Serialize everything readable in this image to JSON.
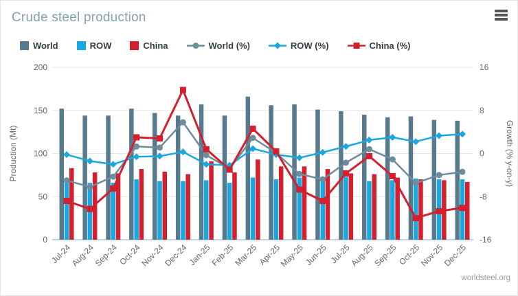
{
  "header": {
    "title": "Crude steel production"
  },
  "watermark": "worldsteel.org",
  "colors": {
    "world_bar": "#587a8e",
    "row_bar": "#19a9e0",
    "china_bar": "#d2202e",
    "world_line": "#6f8c9d",
    "row_line": "#19a9e0",
    "china_line": "#d2202e",
    "grid": "#e6e6e6",
    "baseline": "#a9c7dd",
    "axis_text": "#666666",
    "title_text": "#84a0b1",
    "legend_text": "#333c44"
  },
  "chart_data": {
    "type": "combo-bar-line",
    "title": "Crude steel production",
    "categories": [
      "Jul-24",
      "Aug-24",
      "Sep-24",
      "Oct-24",
      "Nov-24",
      "Dec-24",
      "Jan-25",
      "Feb-25",
      "Mar-25",
      "Apr-25",
      "May-25",
      "Jun-25",
      "Jul-25",
      "Aug-25",
      "Sep-25",
      "Oct-25",
      "Nov-25",
      "Dec-25"
    ],
    "series": [
      {
        "name": "World",
        "type": "bar",
        "axis": "left",
        "color": "#587a8e",
        "marker": "none",
        "values": [
          152,
          144,
          144,
          152,
          147,
          144,
          157,
          144,
          166,
          156,
          157,
          151,
          149,
          145,
          142,
          143,
          139,
          138
        ]
      },
      {
        "name": "ROW",
        "type": "bar",
        "axis": "left",
        "color": "#19a9e0",
        "marker": "none",
        "values": [
          68,
          66,
          66,
          70,
          68,
          68,
          69,
          66,
          72,
          70,
          72,
          68,
          73,
          68,
          69,
          71,
          70,
          70
        ]
      },
      {
        "name": "China",
        "type": "bar",
        "axis": "left",
        "color": "#d2202e",
        "marker": "none",
        "values": [
          83,
          78,
          77,
          82,
          79,
          76,
          91,
          78,
          93,
          85,
          85,
          82,
          77,
          76,
          72,
          70,
          69,
          67
        ]
      },
      {
        "name": "World (%)",
        "type": "line",
        "axis": "right",
        "color": "#6f8c9d",
        "marker": "circle",
        "values": [
          -5.0,
          -6.2,
          -4.3,
          1.3,
          1.1,
          5.8,
          -0.3,
          -2.8,
          2.9,
          0.1,
          -3.8,
          -4.8,
          -1.7,
          0.8,
          -1.1,
          -5.5,
          -4.0,
          -3.4
        ]
      },
      {
        "name": "ROW (%)",
        "type": "line",
        "axis": "right",
        "color": "#19a9e0",
        "marker": "diamond",
        "values": [
          -0.2,
          -1.4,
          -2.0,
          -0.6,
          -0.5,
          0.3,
          -2.0,
          -2.2,
          0.9,
          -0.2,
          -0.8,
          0.2,
          1.3,
          2.5,
          3.0,
          2.2,
          3.3,
          3.6
        ]
      },
      {
        "name": "China (%)",
        "type": "line",
        "axis": "right",
        "color": "#d2202e",
        "marker": "square",
        "values": [
          -8.8,
          -10.3,
          -6.5,
          3.0,
          2.8,
          11.8,
          0.8,
          -3.0,
          4.6,
          0.4,
          -6.7,
          -8.8,
          -3.7,
          -0.5,
          -4.2,
          -12.0,
          -10.7,
          -10.1
        ]
      }
    ],
    "left_axis": {
      "title": "Production (Mt)",
      "ticks": [
        0,
        50,
        100,
        150,
        200
      ],
      "range": [
        0,
        200
      ]
    },
    "right_axis": {
      "title": "Growth (% y-on-y)",
      "ticks": [
        -16,
        -8,
        0,
        8,
        16
      ],
      "range": [
        -16,
        16
      ]
    },
    "grid": true,
    "legend_position": "top"
  }
}
